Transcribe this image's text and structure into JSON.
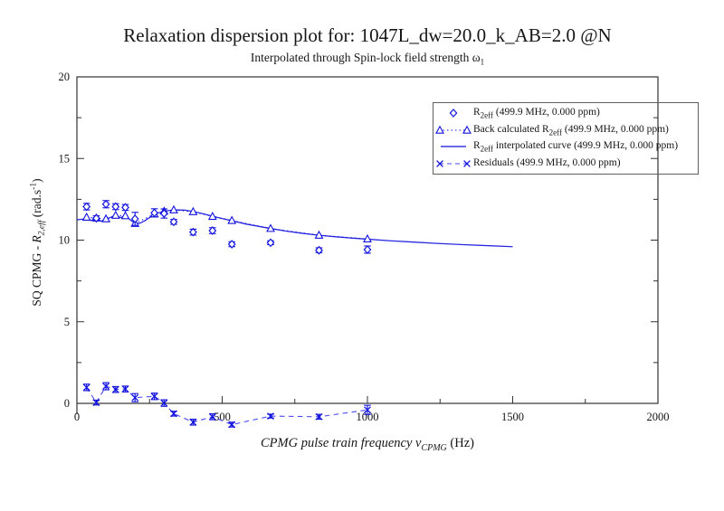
{
  "title": "Relaxation dispersion plot for: 1047L_dw=20.0_k_AB=2.0 @N",
  "subtitle": {
    "text": "Interpolated through Spin-lock field strength ω",
    "sub": "1"
  },
  "axes": {
    "x_label": {
      "main": "CPMG pulse train frequency ν",
      "sub": "CPMG",
      "unit": " (Hz)"
    },
    "y_label": {
      "pre": "SQ CPMG - ",
      "symbol": "R",
      "sub": "2,eff",
      "unit_pre": " (rad.s",
      "sup": "-1",
      "unit_post": ")"
    }
  },
  "chart_data": {
    "type": "line",
    "title": "Relaxation dispersion plot for: 1047L_dw=20.0_k_AB=2.0 @N",
    "subtitle": "Interpolated through Spin-lock field strength ω1",
    "xlabel": "CPMG pulse train frequency νCPMG (Hz)",
    "ylabel": "SQ CPMG - R2,eff (rad.s-1)",
    "xlim": [
      0,
      2000
    ],
    "ylim": [
      0,
      20
    ],
    "grid": false,
    "legend_position": "top-right",
    "x_major_ticks": [
      0,
      500,
      1000,
      1500,
      2000
    ],
    "x_minor_ticks": [
      250,
      750,
      1250,
      1750
    ],
    "y_major_ticks": [
      0,
      5,
      10,
      15,
      20
    ],
    "y_minor_ticks": [
      2.5,
      7.5,
      12.5,
      17.5
    ],
    "colors": {
      "series_blue": "#1212dd",
      "dashed_blue": "#4a4aee",
      "axis": "#333333",
      "legend_border": "#606060"
    },
    "frequencies_hz": [
      33.3,
      66.7,
      100,
      133.3,
      166.7,
      200,
      266.7,
      300,
      333.3,
      400,
      466.7,
      533.3,
      666.7,
      833.3,
      1000
    ],
    "series": [
      {
        "name": "R2eff (499.9 MHz, 0.000 ppm)",
        "marker": "diamond",
        "line": "none",
        "values": [
          12.05,
          11.34,
          12.2,
          12.05,
          12.0,
          11.3,
          11.67,
          11.63,
          11.12,
          10.49,
          10.58,
          9.75,
          9.84,
          9.38,
          9.42
        ],
        "errors": [
          0.2,
          0.15,
          0.22,
          0.18,
          0.18,
          0.4,
          0.25,
          0.28,
          0.15,
          0.18,
          0.18,
          0.15,
          0.12,
          0.15,
          0.22
        ]
      },
      {
        "name": "Back calculated R2eff (499.9 MHz, 0.000 ppm)",
        "marker": "triangle",
        "line": "dotted",
        "values": [
          11.4,
          11.35,
          11.3,
          11.52,
          11.49,
          11.02,
          11.6,
          11.77,
          11.85,
          11.74,
          11.45,
          11.2,
          10.71,
          10.3,
          10.07
        ]
      },
      {
        "name": "R2eff interpolated curve (499.9 MHz, 0.000 ppm)",
        "marker": "none",
        "line": "solid",
        "curve_points": [
          [
            0,
            11.25
          ],
          [
            20,
            11.28
          ],
          [
            33,
            11.4
          ],
          [
            48,
            11.2
          ],
          [
            67,
            11.33
          ],
          [
            83,
            11.16
          ],
          [
            100,
            11.28
          ],
          [
            117,
            11.4
          ],
          [
            133,
            11.52
          ],
          [
            150,
            11.38
          ],
          [
            167,
            11.49
          ],
          [
            183,
            11.25
          ],
          [
            200,
            11.04
          ],
          [
            215,
            11.02
          ],
          [
            233,
            11.18
          ],
          [
            250,
            11.38
          ],
          [
            267,
            11.58
          ],
          [
            283,
            11.68
          ],
          [
            300,
            11.76
          ],
          [
            320,
            11.82
          ],
          [
            345,
            11.85
          ],
          [
            370,
            11.84
          ],
          [
            400,
            11.75
          ],
          [
            433,
            11.62
          ],
          [
            467,
            11.46
          ],
          [
            500,
            11.32
          ],
          [
            533,
            11.19
          ],
          [
            583,
            10.98
          ],
          [
            633,
            10.82
          ],
          [
            667,
            10.71
          ],
          [
            717,
            10.56
          ],
          [
            775,
            10.42
          ],
          [
            833,
            10.3
          ],
          [
            900,
            10.19
          ],
          [
            950,
            10.12
          ],
          [
            1000,
            10.06
          ],
          [
            1080,
            9.96
          ],
          [
            1160,
            9.88
          ],
          [
            1240,
            9.8
          ],
          [
            1320,
            9.73
          ],
          [
            1400,
            9.67
          ],
          [
            1500,
            9.6
          ]
        ]
      },
      {
        "name": "Residuals (499.9 MHz, 0.000 ppm)",
        "marker": "x",
        "line": "dashed",
        "values": [
          0.98,
          0.05,
          1.05,
          0.85,
          0.88,
          0.35,
          0.43,
          0.02,
          -0.63,
          -1.15,
          -0.82,
          -1.3,
          -0.78,
          -0.82,
          -0.4
        ],
        "errors": [
          0.2,
          0.15,
          0.22,
          0.18,
          0.18,
          0.25,
          0.2,
          0.2,
          0.15,
          0.18,
          0.18,
          0.15,
          0.12,
          0.15,
          0.28
        ]
      }
    ],
    "legend": {
      "entries": [
        {
          "marker": "diamond",
          "pre": "R",
          "sub": "2eff",
          "post": " (499.9 MHz, 0.000 ppm)"
        },
        {
          "marker": "triangle-dotted",
          "pre": "Back calculated R",
          "sub": "2eff",
          "post": " (499.9 MHz, 0.000 ppm)"
        },
        {
          "marker": "line",
          "pre": "R",
          "sub": "2eff",
          "post": " interpolated curve (499.9 MHz, 0.000 ppm)"
        },
        {
          "marker": "x-dashed",
          "pre": "Residuals (499.9 MHz, 0.000 ppm)",
          "sub": "",
          "post": ""
        }
      ]
    }
  }
}
